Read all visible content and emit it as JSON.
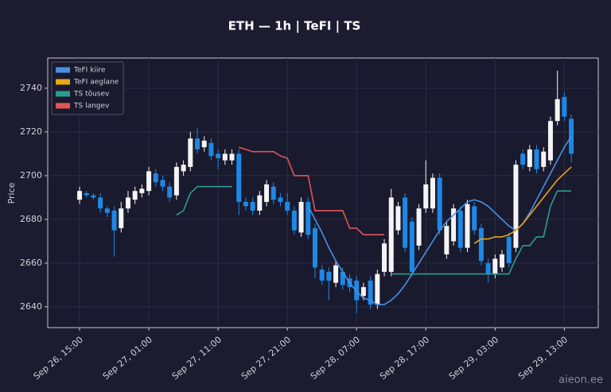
{
  "chart_data": {
    "type": "candlestick",
    "title": "ETH — 1h  |  TeFI  |  TS",
    "ylabel": "Price",
    "watermark": "aieon.ee",
    "categories": [
      "Sep 26, 15:00",
      "Sep 26, 16:00",
      "Sep 26, 17:00",
      "Sep 26, 18:00",
      "Sep 26, 19:00",
      "Sep 26, 20:00",
      "Sep 26, 21:00",
      "Sep 26, 22:00",
      "Sep 26, 23:00",
      "Sep 27, 00:00",
      "Sep 27, 01:00",
      "Sep 27, 02:00",
      "Sep 27, 03:00",
      "Sep 27, 04:00",
      "Sep 27, 05:00",
      "Sep 27, 06:00",
      "Sep 27, 07:00",
      "Sep 27, 08:00",
      "Sep 27, 09:00",
      "Sep 27, 10:00",
      "Sep 27, 11:00",
      "Sep 27, 12:00",
      "Sep 27, 13:00",
      "Sep 27, 14:00",
      "Sep 27, 15:00",
      "Sep 27, 16:00",
      "Sep 27, 17:00",
      "Sep 27, 18:00",
      "Sep 27, 19:00",
      "Sep 27, 20:00",
      "Sep 27, 21:00",
      "Sep 27, 22:00",
      "Sep 27, 23:00",
      "Sep 28, 00:00",
      "Sep 28, 01:00",
      "Sep 28, 02:00",
      "Sep 28, 03:00",
      "Sep 28, 04:00",
      "Sep 28, 05:00",
      "Sep 28, 06:00",
      "Sep 28, 07:00",
      "Sep 28, 08:00",
      "Sep 28, 09:00",
      "Sep 28, 10:00",
      "Sep 28, 11:00",
      "Sep 28, 12:00",
      "Sep 28, 13:00",
      "Sep 28, 14:00",
      "Sep 28, 15:00",
      "Sep 28, 16:00",
      "Sep 28, 17:00",
      "Sep 28, 18:00",
      "Sep 28, 19:00",
      "Sep 28, 20:00",
      "Sep 28, 21:00",
      "Sep 28, 22:00",
      "Sep 28, 23:00",
      "Sep 29, 00:00",
      "Sep 29, 01:00",
      "Sep 29, 02:00",
      "Sep 29, 03:00",
      "Sep 29, 04:00",
      "Sep 29, 05:00",
      "Sep 29, 06:00",
      "Sep 29, 07:00",
      "Sep 29, 08:00",
      "Sep 29, 09:00",
      "Sep 29, 10:00",
      "Sep 29, 11:00",
      "Sep 29, 12:00",
      "Sep 29, 13:00",
      "Sep 29, 14:00"
    ],
    "open": [
      2689,
      2692,
      2691,
      2690,
      2685,
      2684,
      2676,
      2685,
      2689,
      2692,
      2693,
      2701,
      2698,
      2695,
      2691,
      2702,
      2704,
      2717,
      2713,
      2715,
      2710,
      2707,
      2707,
      2710,
      2688,
      2688,
      2684,
      2688,
      2695,
      2690,
      2688,
      2684,
      2674,
      2688,
      2676,
      2657,
      2656,
      2651,
      2656,
      2653,
      2652,
      2645,
      2652,
      2641,
      2656,
      2656,
      2675,
      2690,
      2679,
      2668,
      2685,
      2685,
      2699,
      2664,
      2670,
      2684,
      2667,
      2686,
      2676,
      2660,
      2655,
      2658,
      2672,
      2667,
      2710,
      2704,
      2712,
      2704,
      2707,
      2725,
      2736,
      2726
    ],
    "high": [
      2695,
      2693,
      2692,
      2692,
      2686,
      2686,
      2688,
      2693,
      2695,
      2696,
      2704,
      2703,
      2700,
      2697,
      2706,
      2707,
      2720,
      2722,
      2718,
      2717,
      2712,
      2712,
      2712,
      2712,
      2690,
      2690,
      2693,
      2698,
      2697,
      2692,
      2692,
      2686,
      2690,
      2690,
      2678,
      2659,
      2658,
      2661,
      2658,
      2655,
      2654,
      2651,
      2654,
      2657,
      2671,
      2694,
      2688,
      2692,
      2681,
      2687,
      2707,
      2701,
      2701,
      2679,
      2687,
      2686,
      2689,
      2688,
      2678,
      2662,
      2664,
      2666,
      2674,
      2707,
      2712,
      2714,
      2714,
      2713,
      2727,
      2748,
      2738,
      2728
    ],
    "low": [
      2687,
      2690,
      2689,
      2683,
      2681,
      2663,
      2674,
      2683,
      2687,
      2690,
      2691,
      2695,
      2693,
      2688,
      2689,
      2700,
      2702,
      2710,
      2711,
      2707,
      2703,
      2705,
      2705,
      2682,
      2684,
      2682,
      2682,
      2686,
      2687,
      2686,
      2682,
      2673,
      2672,
      2671,
      2653,
      2650,
      2643,
      2649,
      2648,
      2647,
      2637,
      2643,
      2639,
      2639,
      2654,
      2654,
      2673,
      2665,
      2654,
      2666,
      2683,
      2683,
      2673,
      2662,
      2668,
      2665,
      2665,
      2673,
      2659,
      2651,
      2653,
      2656,
      2658,
      2665,
      2703,
      2702,
      2701,
      2702,
      2705,
      2723,
      2725,
      2706
    ],
    "close": [
      2693,
      2691,
      2690,
      2685,
      2683,
      2675,
      2685,
      2690,
      2693,
      2694,
      2702,
      2697,
      2695,
      2690,
      2704,
      2705,
      2717,
      2712,
      2716,
      2709,
      2708,
      2710,
      2710,
      2688,
      2686,
      2684,
      2691,
      2696,
      2689,
      2688,
      2684,
      2675,
      2688,
      2673,
      2658,
      2652,
      2652,
      2659,
      2650,
      2649,
      2643,
      2649,
      2641,
      2655,
      2669,
      2690,
      2686,
      2667,
      2656,
      2685,
      2696,
      2699,
      2675,
      2677,
      2685,
      2667,
      2687,
      2675,
      2661,
      2655,
      2662,
      2664,
      2660,
      2705,
      2705,
      2712,
      2703,
      2711,
      2725,
      2735,
      2727,
      2710
    ],
    "up_color": "#f4f4f4",
    "down_color": "#1e88e5",
    "series": [
      {
        "name": "TeFI kiire",
        "color": "#4a90e2",
        "values": [
          null,
          null,
          null,
          null,
          null,
          null,
          null,
          null,
          null,
          null,
          null,
          null,
          null,
          null,
          null,
          null,
          null,
          null,
          null,
          null,
          null,
          null,
          null,
          null,
          null,
          null,
          null,
          null,
          null,
          null,
          null,
          null,
          null,
          2686,
          2680,
          2674,
          2667,
          2661,
          2656,
          2651,
          2647,
          2644,
          2643,
          2641,
          2641,
          2643,
          2646,
          2650,
          2655,
          2660,
          2665,
          2670,
          2675,
          2679,
          2682,
          2685,
          2688,
          2689,
          2688,
          2686,
          2683,
          2680,
          2677,
          2675,
          2678,
          2683,
          2689,
          2695,
          2701,
          2707,
          2713,
          2718
        ]
      },
      {
        "name": "TeFI aeglane",
        "color": "#e6a817",
        "values": [
          null,
          null,
          null,
          null,
          null,
          null,
          null,
          null,
          null,
          null,
          null,
          null,
          null,
          null,
          null,
          null,
          null,
          null,
          null,
          null,
          null,
          null,
          null,
          null,
          null,
          null,
          null,
          null,
          null,
          null,
          null,
          null,
          null,
          null,
          null,
          null,
          null,
          null,
          null,
          null,
          null,
          null,
          null,
          null,
          null,
          null,
          null,
          null,
          null,
          null,
          null,
          null,
          null,
          null,
          null,
          null,
          null,
          2669,
          2671,
          2671,
          2672,
          2672,
          2673,
          2675,
          2678,
          2682,
          2686,
          2690,
          2694,
          2698,
          2701,
          2704
        ]
      },
      {
        "name": "TS tõusev",
        "color": "#2a9d8f",
        "values": [
          null,
          null,
          null,
          null,
          null,
          null,
          null,
          null,
          null,
          null,
          null,
          null,
          null,
          null,
          2682,
          2684,
          2692,
          2695,
          2695,
          2695,
          2695,
          2695,
          2695,
          null,
          null,
          null,
          null,
          null,
          null,
          null,
          null,
          null,
          null,
          null,
          null,
          null,
          null,
          null,
          null,
          null,
          null,
          null,
          null,
          null,
          null,
          2655,
          2655,
          2655,
          2655,
          2655,
          2655,
          2655,
          2655,
          2655,
          2655,
          2655,
          2655,
          2655,
          2655,
          2655,
          2655,
          2655,
          2655,
          2662,
          2668,
          2668,
          2672,
          2672,
          2686,
          2693,
          2693,
          2693
        ]
      },
      {
        "name": "TS langev",
        "color": "#e05555",
        "values": [
          null,
          null,
          null,
          null,
          null,
          null,
          null,
          null,
          null,
          null,
          null,
          null,
          null,
          null,
          null,
          null,
          null,
          null,
          null,
          null,
          null,
          null,
          null,
          2713,
          2712,
          2711,
          2711,
          2711,
          2711,
          2709,
          2708,
          2700,
          2700,
          2700,
          2684,
          2684,
          2684,
          2684,
          2684,
          2676,
          2676,
          2673,
          2673,
          2673,
          2673,
          null,
          null,
          null,
          null,
          null,
          null,
          null,
          null,
          null,
          null,
          null,
          null,
          null,
          null,
          null,
          null,
          null,
          null,
          null,
          null,
          null,
          null,
          null,
          null,
          null,
          null,
          null
        ]
      }
    ],
    "ylim": [
      2630.5,
      2753.8
    ],
    "yticks": [
      2640,
      2660,
      2680,
      2700,
      2720,
      2740
    ],
    "xticks": [
      "Sep 26, 15:00",
      "Sep 27, 01:00",
      "Sep 27, 11:00",
      "Sep 27, 21:00",
      "Sep 28, 07:00",
      "Sep 28, 17:00",
      "Sep 29, 03:00",
      "Sep 29, 13:00"
    ],
    "grid": true,
    "legend": "upper left"
  }
}
